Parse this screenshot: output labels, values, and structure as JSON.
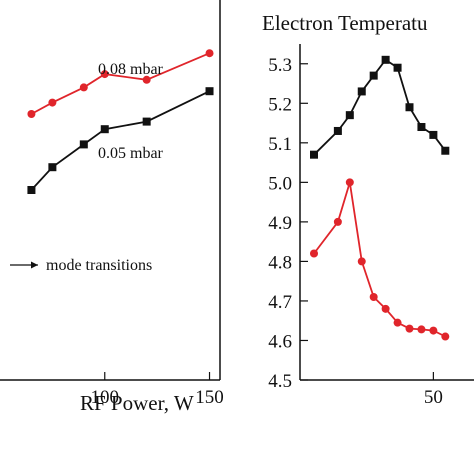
{
  "chart_data": [
    {
      "type": "line",
      "title": "",
      "xlabel": "RF Power, W",
      "ylabel": "",
      "xlim": [
        50,
        155
      ],
      "ylim": [
        0,
        10
      ],
      "x_ticks": [
        100,
        150
      ],
      "y_ticks": [],
      "grid": false,
      "legend": "none",
      "series": [
        {
          "name": "0.08 mbar",
          "color": "#e0252b",
          "marker": "circle",
          "x": [
            65,
            75,
            90,
            100,
            120,
            150
          ],
          "y": [
            7.0,
            7.3,
            7.7,
            8.05,
            7.9,
            8.6
          ]
        },
        {
          "name": "0.05 mbar",
          "color": "#111111",
          "marker": "square",
          "x": [
            65,
            75,
            90,
            100,
            120,
            150
          ],
          "y": [
            5.0,
            5.6,
            6.2,
            6.6,
            6.8,
            7.6
          ]
        }
      ],
      "annotations": [
        {
          "text": "mode transitions",
          "arrow": true
        }
      ]
    },
    {
      "type": "line",
      "title": "Electron Temperatu",
      "xlabel": "",
      "ylabel": "",
      "xlim": [
        30,
        62
      ],
      "ylim": [
        4.5,
        5.35
      ],
      "x_ticks": [
        50
      ],
      "y_ticks": [
        4.5,
        4.6,
        4.7,
        4.8,
        4.9,
        5.0,
        5.1,
        5.2,
        5.3
      ],
      "y_tick_labels": [
        "4.5",
        "4.6",
        "4.7",
        "4.8",
        "4.9",
        "5.0",
        "5.1",
        "5.2",
        "5.3"
      ],
      "grid": false,
      "legend": "none",
      "series": [
        {
          "name": "",
          "color": "#111111",
          "marker": "square",
          "x": [
            30,
            34,
            36,
            38,
            40,
            42,
            44,
            46,
            48,
            50,
            52
          ],
          "y": [
            5.07,
            5.13,
            5.17,
            5.23,
            5.27,
            5.31,
            5.29,
            5.19,
            5.14,
            5.12,
            5.08
          ]
        },
        {
          "name": "",
          "color": "#e0252b",
          "marker": "circle",
          "x": [
            30,
            34,
            36,
            38,
            40,
            42,
            44,
            46,
            48,
            50,
            52
          ],
          "y": [
            4.82,
            4.9,
            5.0,
            4.8,
            4.71,
            4.68,
            4.645,
            4.63,
            4.628,
            4.625,
            4.61
          ]
        }
      ]
    }
  ]
}
